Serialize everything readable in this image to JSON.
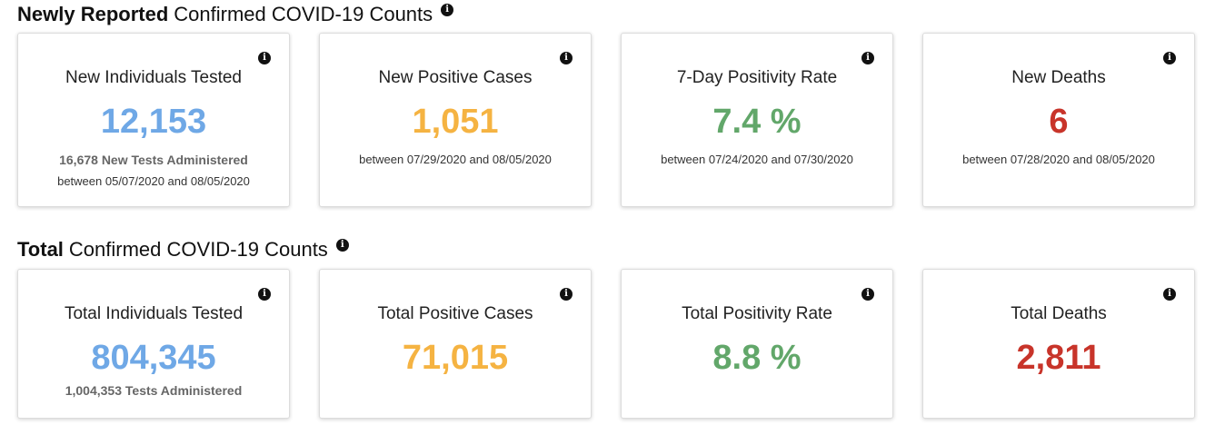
{
  "colors": {
    "blue": "#6fa8e6",
    "orange": "#f5b342",
    "green": "#62a76a",
    "red": "#c8342a"
  },
  "info_icon": "info-icon",
  "newly": {
    "title_bold": "Newly Reported",
    "title_rest": "Confirmed COVID-19 Counts",
    "cards": [
      {
        "title": "New Individuals Tested",
        "value": "12,153",
        "sub": "16,678 New Tests Administered",
        "date": "between 05/07/2020 and 08/05/2020"
      },
      {
        "title": "New Positive Cases",
        "value": "1,051",
        "date": "between 07/29/2020 and 08/05/2020"
      },
      {
        "title": "7-Day Positivity Rate",
        "value": "7.4 %",
        "date": "between 07/24/2020 and 07/30/2020"
      },
      {
        "title": "New Deaths",
        "value": "6",
        "date": "between 07/28/2020 and 08/05/2020"
      }
    ]
  },
  "total": {
    "title_bold": "Total",
    "title_rest": "Confirmed COVID-19 Counts",
    "cards": [
      {
        "title": "Total Individuals Tested",
        "value": "804,345",
        "sub": "1,004,353 Tests Administered"
      },
      {
        "title": "Total Positive Cases",
        "value": "71,015"
      },
      {
        "title": "Total Positivity Rate",
        "value": "8.8 %"
      },
      {
        "title": "Total Deaths",
        "value": "2,811"
      }
    ]
  }
}
